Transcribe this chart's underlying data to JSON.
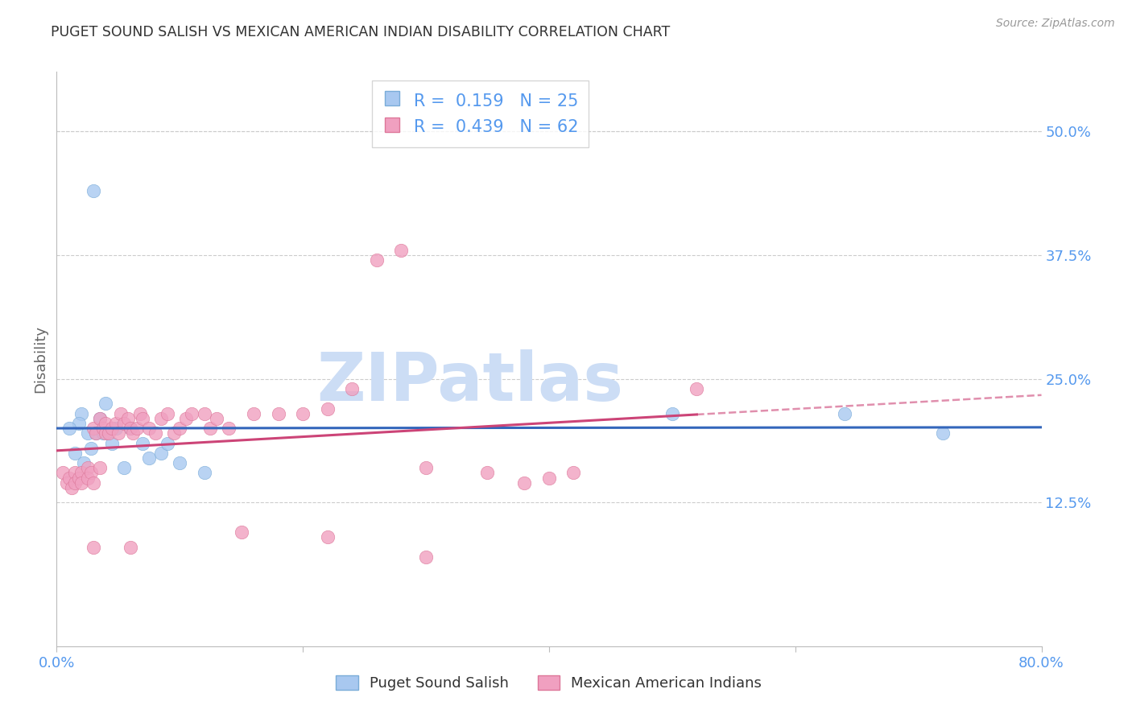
{
  "title": "PUGET SOUND SALISH VS MEXICAN AMERICAN INDIAN DISABILITY CORRELATION CHART",
  "source": "Source: ZipAtlas.com",
  "ylabel": "Disability",
  "xlim": [
    0.0,
    0.8
  ],
  "ylim": [
    -0.02,
    0.56
  ],
  "yticks": [
    0.125,
    0.25,
    0.375,
    0.5
  ],
  "ytick_labels": [
    "12.5%",
    "25.0%",
    "37.5%",
    "50.0%"
  ],
  "xticks": [
    0.0,
    0.2,
    0.4,
    0.6,
    0.8
  ],
  "xtick_labels": [
    "0.0%",
    "",
    "",
    "",
    "80.0%"
  ],
  "series1_label": "Puget Sound Salish",
  "series1_R": "0.159",
  "series1_N": "25",
  "series1_color": "#a8c8f0",
  "series1_edge": "#7aacd8",
  "series1_line_color": "#3366bb",
  "series2_label": "Mexican American Indians",
  "series2_R": "0.439",
  "series2_N": "62",
  "series2_color": "#f0a0c0",
  "series2_edge": "#dd7799",
  "series2_line_color": "#cc4477",
  "watermark_color": "#ccddf5",
  "background_color": "#ffffff",
  "axis_label_color": "#5599ee",
  "grid_color": "#cccccc",
  "title_color": "#333333",
  "puget_x": [
    0.03,
    0.02,
    0.018,
    0.025,
    0.01,
    0.035,
    0.015,
    0.04,
    0.045,
    0.028,
    0.032,
    0.022,
    0.038,
    0.048,
    0.055,
    0.06,
    0.07,
    0.075,
    0.085,
    0.09,
    0.1,
    0.12,
    0.5,
    0.64,
    0.72
  ],
  "puget_y": [
    0.44,
    0.215,
    0.205,
    0.195,
    0.2,
    0.21,
    0.175,
    0.225,
    0.185,
    0.18,
    0.195,
    0.165,
    0.195,
    0.2,
    0.16,
    0.2,
    0.185,
    0.17,
    0.175,
    0.185,
    0.165,
    0.155,
    0.215,
    0.215,
    0.195
  ],
  "mexican_x": [
    0.005,
    0.008,
    0.01,
    0.012,
    0.015,
    0.015,
    0.018,
    0.02,
    0.02,
    0.025,
    0.025,
    0.028,
    0.03,
    0.03,
    0.032,
    0.035,
    0.035,
    0.038,
    0.04,
    0.04,
    0.042,
    0.045,
    0.048,
    0.05,
    0.052,
    0.055,
    0.058,
    0.06,
    0.062,
    0.065,
    0.068,
    0.07,
    0.075,
    0.08,
    0.085,
    0.09,
    0.095,
    0.1,
    0.105,
    0.11,
    0.12,
    0.125,
    0.13,
    0.14,
    0.16,
    0.18,
    0.2,
    0.22,
    0.24,
    0.26,
    0.28,
    0.3,
    0.35,
    0.38,
    0.4,
    0.42,
    0.52,
    0.03,
    0.06,
    0.15,
    0.22,
    0.3
  ],
  "mexican_y": [
    0.155,
    0.145,
    0.15,
    0.14,
    0.155,
    0.145,
    0.15,
    0.155,
    0.145,
    0.16,
    0.15,
    0.155,
    0.145,
    0.2,
    0.195,
    0.16,
    0.21,
    0.2,
    0.205,
    0.195,
    0.195,
    0.2,
    0.205,
    0.195,
    0.215,
    0.205,
    0.21,
    0.2,
    0.195,
    0.2,
    0.215,
    0.21,
    0.2,
    0.195,
    0.21,
    0.215,
    0.195,
    0.2,
    0.21,
    0.215,
    0.215,
    0.2,
    0.21,
    0.2,
    0.215,
    0.215,
    0.215,
    0.22,
    0.24,
    0.37,
    0.38,
    0.16,
    0.155,
    0.145,
    0.15,
    0.155,
    0.24,
    0.08,
    0.08,
    0.095,
    0.09,
    0.07
  ]
}
